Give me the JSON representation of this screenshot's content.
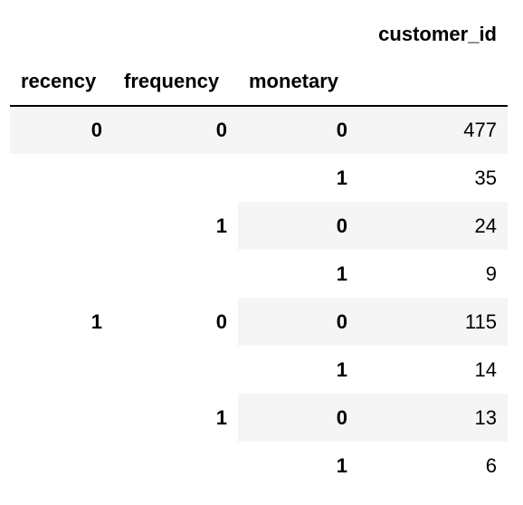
{
  "table": {
    "value_column": "customer_id",
    "index_names": [
      "recency",
      "frequency",
      "monetary"
    ],
    "rows": [
      {
        "recency": "0",
        "frequency": "0",
        "monetary": "0",
        "customer_id": "477"
      },
      {
        "recency": "",
        "frequency": "",
        "monetary": "1",
        "customer_id": "35"
      },
      {
        "recency": "",
        "frequency": "1",
        "monetary": "0",
        "customer_id": "24"
      },
      {
        "recency": "",
        "frequency": "",
        "monetary": "1",
        "customer_id": "9"
      },
      {
        "recency": "1",
        "frequency": "0",
        "monetary": "0",
        "customer_id": "115"
      },
      {
        "recency": "",
        "frequency": "",
        "monetary": "1",
        "customer_id": "14"
      },
      {
        "recency": "",
        "frequency": "1",
        "monetary": "0",
        "customer_id": "13"
      },
      {
        "recency": "",
        "frequency": "",
        "monetary": "1",
        "customer_id": "6"
      }
    ]
  },
  "colors": {
    "stripe": "#f5f5f5",
    "header_rule": "#000000",
    "background": "#ffffff"
  }
}
